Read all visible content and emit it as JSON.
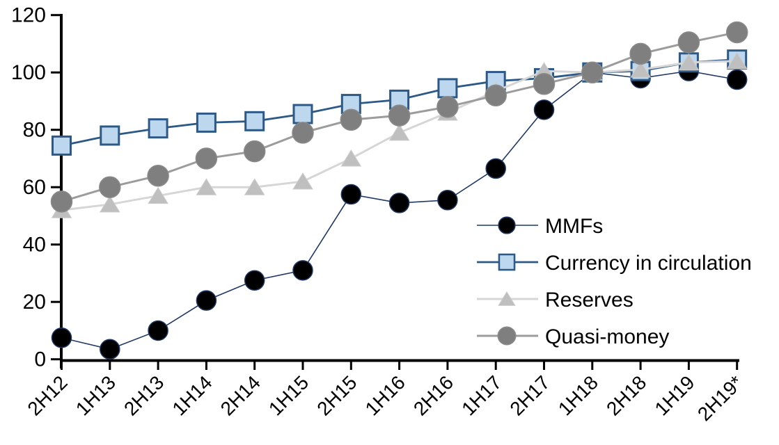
{
  "chart_data": {
    "type": "line",
    "title": "",
    "xlabel": "",
    "ylabel": "",
    "categories": [
      "2H12",
      "1H13",
      "2H13",
      "1H14",
      "2H14",
      "1H15",
      "2H15",
      "1H16",
      "2H16",
      "1H17",
      "2H17",
      "1H18",
      "2H18",
      "1H19",
      "2H19*"
    ],
    "series": [
      {
        "name": "MMFs",
        "marker": "circle-black",
        "line_color": "#1F3864",
        "line_width": 1.6,
        "marker_fill": "#000000",
        "marker_stroke": "#1F3864",
        "values": [
          7.5,
          3.5,
          10,
          20.5,
          27.5,
          31,
          57.5,
          54.5,
          55.5,
          66.5,
          87,
          100,
          98,
          100.5,
          97.5
        ]
      },
      {
        "name": "Currency in circulation",
        "marker": "square-lightblue",
        "line_color": "#2C5985",
        "line_width": 2.8,
        "marker_fill": "#BDD7EE",
        "marker_stroke": "#2C5985",
        "values": [
          74.5,
          78,
          80.5,
          82.5,
          83,
          85.5,
          89,
          90.5,
          94.5,
          97,
          98,
          100,
          100.5,
          103.5,
          104.5
        ]
      },
      {
        "name": "Reserves",
        "marker": "triangle-lightgray",
        "line_color": "#D6D6D6",
        "line_width": 3,
        "marker_fill": "#BFBFBF",
        "marker_stroke": "#CCCCCC",
        "values": [
          52,
          54,
          57,
          60,
          60,
          62,
          70,
          79,
          86,
          93.5,
          100.5,
          100,
          101,
          103.5,
          104
        ]
      },
      {
        "name": "Quasi-money",
        "marker": "circle-gray",
        "line_color": "#9C9C9C",
        "line_width": 3,
        "marker_fill": "#7F7F7F",
        "marker_stroke": "#8A8A8A",
        "values": [
          55,
          60,
          64,
          70,
          72.5,
          79,
          83.5,
          85,
          88,
          92,
          96,
          100,
          106.5,
          110.5,
          114
        ]
      }
    ],
    "ylim": [
      0,
      120
    ],
    "ytick_step": 20,
    "ytick_labels": [
      "0",
      "20",
      "40",
      "60",
      "80",
      "100",
      "120"
    ],
    "grid": false,
    "legend_position": "inside-right-middle",
    "legend": [
      "MMFs",
      "Currency in circulation",
      "Reserves",
      "Quasi-money"
    ],
    "axis_color": "#000000"
  }
}
